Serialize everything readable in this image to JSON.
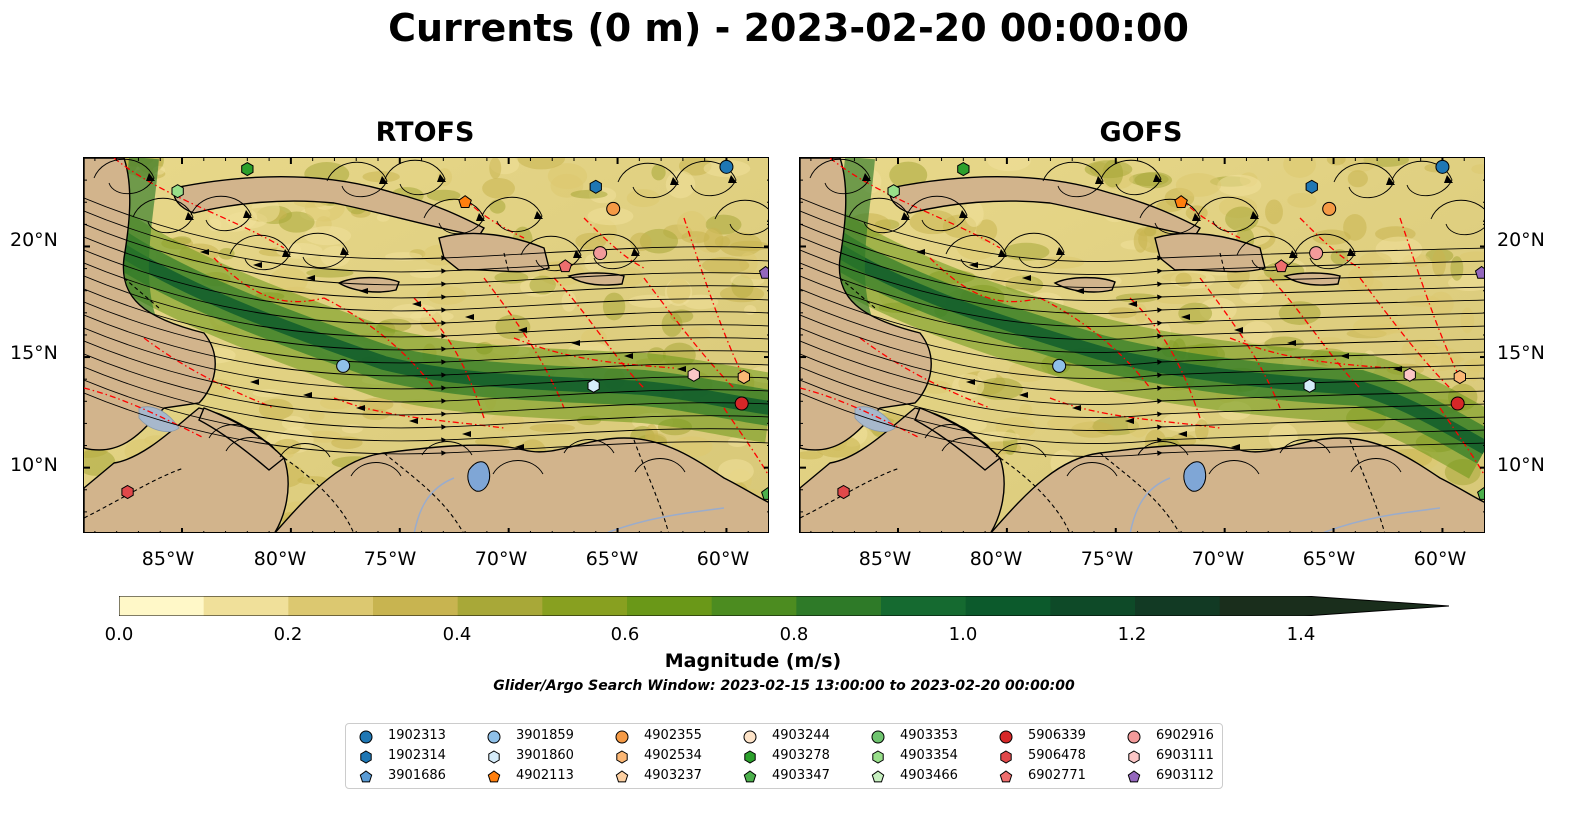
{
  "figure": {
    "title": "Currents (0 m) - 2023-02-20 00:00:00",
    "panels": [
      {
        "title": "RTOFS"
      },
      {
        "title": "GOFS"
      }
    ],
    "lat_labels": [
      "20°N",
      "15°N",
      "10°N"
    ],
    "lon_labels": [
      "85°W",
      "80°W",
      "75°W",
      "70°W",
      "65°W",
      "60°W"
    ],
    "extent": {
      "lon": [
        -89.5,
        -58
      ],
      "lat": [
        7,
        24
      ]
    }
  },
  "colorbar": {
    "label": "Magnitude (m/s)",
    "ticks": [
      "0.0",
      "0.2",
      "0.4",
      "0.6",
      "0.8",
      "1.0",
      "1.2",
      "1.4"
    ],
    "colors": [
      "#fff8c8",
      "#f0e09a",
      "#dcc870",
      "#c8b450",
      "#a8a838",
      "#88a020",
      "#6a9818",
      "#4c8c20",
      "#2e7a28",
      "#156a30",
      "#0c5a2c",
      "#0e4a28",
      "#123a24",
      "#1a2e1c"
    ],
    "extend": "max"
  },
  "search_window": "Glider/Argo Search Window: 2023-02-15 13:00:00 to 2023-02-20 00:00:00",
  "legend": [
    {
      "id": "1902313",
      "color": "#1f77b4",
      "marker": "circle"
    },
    {
      "id": "1902314",
      "color": "#1f77b4",
      "marker": "hexagon"
    },
    {
      "id": "3901686",
      "color": "#5a9bd4",
      "marker": "pentagon"
    },
    {
      "id": "3901859",
      "color": "#8fc0e8",
      "marker": "circle"
    },
    {
      "id": "3901860",
      "color": "#d6ecfa",
      "marker": "hexagon"
    },
    {
      "id": "4902113",
      "color": "#ff7f0e",
      "marker": "pentagon"
    },
    {
      "id": "4902355",
      "color": "#f59a45",
      "marker": "circle"
    },
    {
      "id": "4902534",
      "color": "#fbb775",
      "marker": "hexagon"
    },
    {
      "id": "4903237",
      "color": "#fdd0a2",
      "marker": "pentagon"
    },
    {
      "id": "4903244",
      "color": "#fde3c8",
      "marker": "circle"
    },
    {
      "id": "4903278",
      "color": "#2ca02c",
      "marker": "hexagon"
    },
    {
      "id": "4903347",
      "color": "#4cb04c",
      "marker": "pentagon"
    },
    {
      "id": "4903353",
      "color": "#6fc46f",
      "marker": "circle"
    },
    {
      "id": "4903354",
      "color": "#98df8a",
      "marker": "hexagon"
    },
    {
      "id": "4903466",
      "color": "#c7f0c0",
      "marker": "pentagon"
    },
    {
      "id": "5906339",
      "color": "#d62728",
      "marker": "circle"
    },
    {
      "id": "5906478",
      "color": "#e0484a",
      "marker": "hexagon"
    },
    {
      "id": "6902771",
      "color": "#ef6e6e",
      "marker": "pentagon"
    },
    {
      "id": "6902916",
      "color": "#f29a9a",
      "marker": "circle"
    },
    {
      "id": "6903111",
      "color": "#fbc6c6",
      "marker": "hexagon"
    },
    {
      "id": "6903112",
      "color": "#9467bd",
      "marker": "pentagon"
    }
  ],
  "floats": [
    {
      "id": "1902313",
      "lon": -60.0,
      "lat": 23.6
    },
    {
      "id": "1902314",
      "lon": -66.0,
      "lat": 22.7
    },
    {
      "id": "3901859",
      "lon": -77.6,
      "lat": 14.6
    },
    {
      "id": "3901860",
      "lon": -66.1,
      "lat": 13.7
    },
    {
      "id": "4902113",
      "lon": -72.0,
      "lat": 22.0
    },
    {
      "id": "4902355",
      "lon": -65.2,
      "lat": 21.7
    },
    {
      "id": "4903278",
      "lon": -82.0,
      "lat": 23.5
    },
    {
      "id": "4903347",
      "lon": -58.1,
      "lat": 8.8
    },
    {
      "id": "4903354",
      "lon": -85.2,
      "lat": 22.5
    },
    {
      "id": "5906339",
      "lon": -59.3,
      "lat": 12.9
    },
    {
      "id": "5906478",
      "lon": -87.5,
      "lat": 8.9
    },
    {
      "id": "6902771",
      "lon": -67.4,
      "lat": 19.1
    },
    {
      "id": "6902916",
      "lon": -65.8,
      "lat": 19.7
    },
    {
      "id": "6903111",
      "lon": -61.5,
      "lat": 14.2
    },
    {
      "id": "6903112",
      "lon": -58.2,
      "lat": 18.8
    },
    {
      "id": "4902534",
      "lon": -59.2,
      "lat": 14.1
    }
  ]
}
